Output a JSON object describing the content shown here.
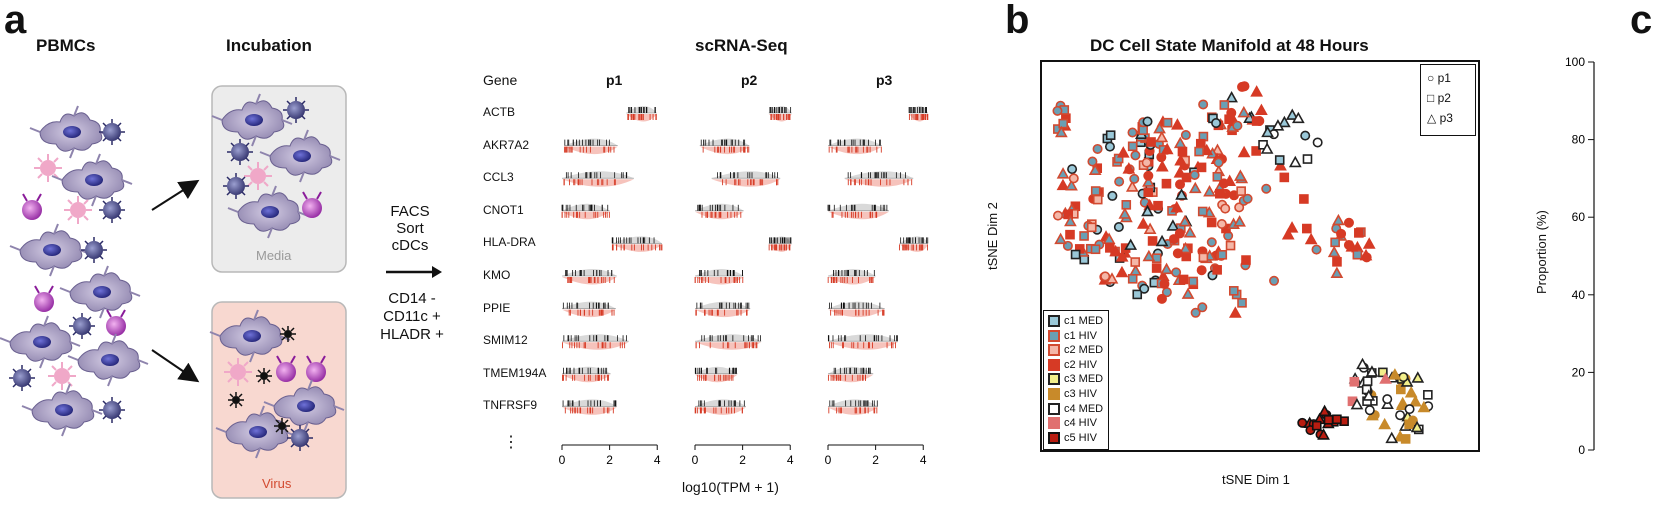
{
  "panels": {
    "a": {
      "letter": "a",
      "pbmcs_label": "PBMCs",
      "incubation_label": "Incubation",
      "media_label": "Media",
      "virus_label": "Virus",
      "facs_lines": [
        "FACS",
        "Sort",
        "cDCs"
      ],
      "marker_lines": [
        "CD14 -",
        "CD11c +",
        "HLADR +"
      ],
      "scrna_title": "scRNA-Seq",
      "gene_header": "Gene",
      "donors": [
        "p1",
        "p2",
        "p3"
      ],
      "genes": [
        "ACTB",
        "AKR7A2",
        "CCL3",
        "CNOT1",
        "HLA-DRA",
        "KMO",
        "PPIE",
        "SMIM12",
        "TMEM194A",
        "TNFRSF9"
      ],
      "ellipsis": "⋮",
      "x_ticks": [
        "0",
        "2",
        "4"
      ],
      "x_label": "log10(TPM + 1)"
    },
    "b": {
      "letter": "b",
      "title": "DC Cell State Manifold at 48 Hours",
      "xlabel": "tSNE Dim 1",
      "ylabel": "tSNE Dim 2",
      "shape_legend": [
        {
          "label": "p1",
          "shape": "circle"
        },
        {
          "label": "p2",
          "shape": "square"
        },
        {
          "label": "p3",
          "shape": "triangle"
        }
      ],
      "cluster_legend": [
        {
          "label": "c1 MED",
          "fill": "#9ac8d8",
          "stroke": "#222"
        },
        {
          "label": "c1 HIV",
          "fill": "#6a9fb4",
          "stroke": "#d24a30"
        },
        {
          "label": "c2 MED",
          "fill": "#f4b7a8",
          "stroke": "#d24a30"
        },
        {
          "label": "c2 HIV",
          "fill": "#d63a25",
          "stroke": "#d63a25"
        },
        {
          "label": "c3 MED",
          "fill": "#f2ef8a",
          "stroke": "#222"
        },
        {
          "label": "c3 HIV",
          "fill": "#c88a2a",
          "stroke": "#c88a2a"
        },
        {
          "label": "c4 MED",
          "fill": "#ffffff",
          "stroke": "#222"
        },
        {
          "label": "c4 HIV",
          "fill": "#e07070",
          "stroke": "#e07070"
        },
        {
          "label": "c5 HIV",
          "fill": "#b81c10",
          "stroke": "#111"
        }
      ]
    },
    "c": {
      "letter": "c",
      "ylabel": "Proportion (%)",
      "yticks": [
        "0",
        "20",
        "40",
        "60",
        "80",
        "100"
      ]
    }
  },
  "colors": {
    "media_bg": "#ececec",
    "virus_bg": "#f8d8d0",
    "virus_text": "#d24a30",
    "media_text": "#9a9a9a",
    "red": "#d63a25",
    "grey_density": "#d9d9d9",
    "pink_density": "#f6c3bc"
  }
}
